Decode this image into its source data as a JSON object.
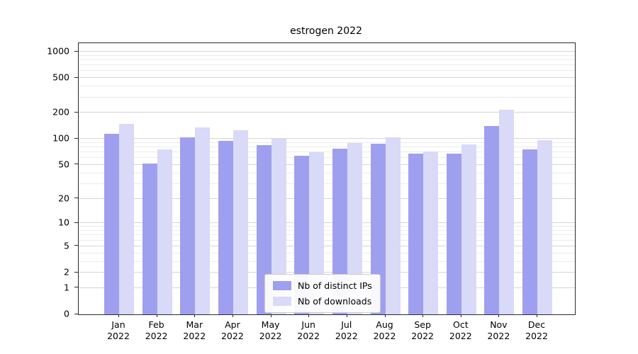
{
  "title": "estrogen 2022",
  "colors": {
    "ips": "#9f9ff0",
    "downloads": "#d9d9f8",
    "grid_major": "#d6d6d6",
    "grid_minor": "#ececec",
    "axis": "#2b2b2b"
  },
  "legend": {
    "items": [
      {
        "label": "Nb of distinct IPs",
        "color_key": "ips"
      },
      {
        "label": "Nb of downloads",
        "color_key": "downloads"
      }
    ]
  },
  "y_axis": {
    "ticks": [
      0,
      1,
      2,
      5,
      10,
      20,
      50,
      100,
      200,
      500,
      1000
    ],
    "minor_ticks": [
      3,
      4,
      6,
      7,
      8,
      9,
      30,
      40,
      60,
      70,
      80,
      90,
      300,
      400,
      600,
      700,
      800,
      900
    ],
    "scale": "log1p",
    "top_value": 1250
  },
  "chart_data": {
    "type": "bar",
    "title": "estrogen 2022",
    "categories": [
      "Jan 2022",
      "Feb 2022",
      "Mar 2022",
      "Apr 2022",
      "May 2022",
      "Jun 2022",
      "Jul 2022",
      "Aug 2022",
      "Sep 2022",
      "Oct 2022",
      "Nov 2022",
      "Dec 2022"
    ],
    "series": [
      {
        "name": "Nb of distinct IPs",
        "values": [
          115,
          52,
          104,
          95,
          85,
          64,
          77,
          88,
          67,
          67,
          142,
          75
        ]
      },
      {
        "name": "Nb of downloads",
        "values": [
          150,
          75,
          135,
          125,
          100,
          70,
          90,
          104,
          72,
          86,
          215,
          96
        ]
      }
    ],
    "xlabel": "",
    "ylabel": "",
    "yscale": "log1p (symlog-like: 0,1,2,5,10,20,50,100,200,500,1000)",
    "yticks": [
      0,
      1,
      2,
      5,
      10,
      20,
      50,
      100,
      200,
      500,
      1000
    ],
    "grid": true,
    "legend_position": "lower-center-inside"
  }
}
